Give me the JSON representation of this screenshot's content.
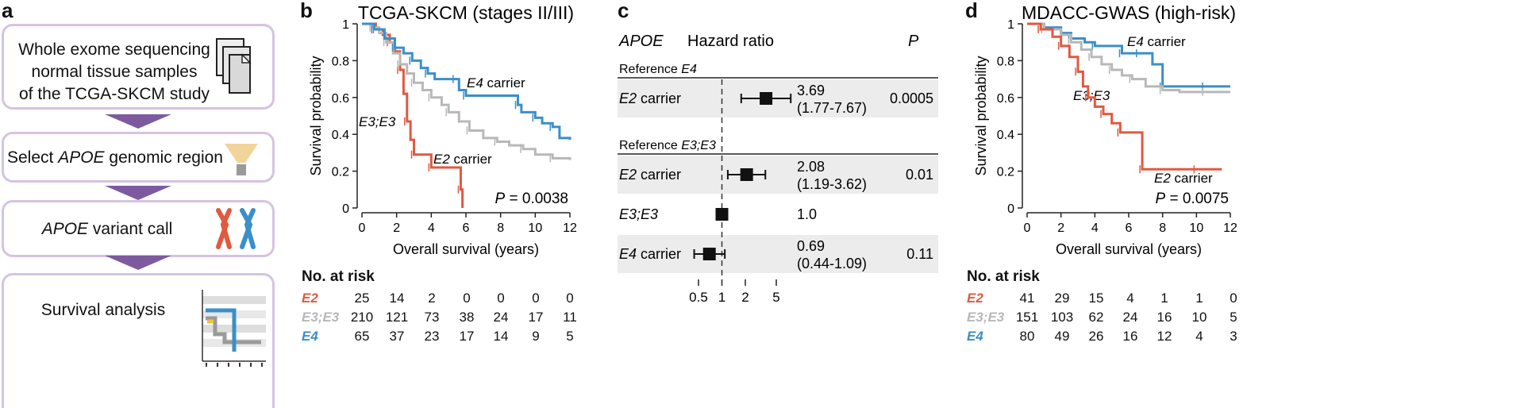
{
  "panel_a": {
    "letter": "a",
    "step1": [
      "Whole exome sequencing",
      "normal tissue samples",
      "of the TCGA-SKCM study"
    ],
    "step2_pre": "Select ",
    "step2_gene": "APOE",
    "step2_post": " genomic region",
    "step3_gene": "APOE",
    "step3_post": " variant call",
    "step4": "Survival analysis",
    "icons": [
      "document-stack-icon",
      "funnel-icon",
      "chromosome-icon",
      "km-plot-icon"
    ]
  },
  "panel_b": {
    "letter": "b",
    "risk": {
      "title": "No. at risk",
      "rows": [
        {
          "label": "E2",
          "color": "#e05a40",
          "values": [
            "25",
            "14",
            "2",
            "0",
            "0",
            "0",
            "0"
          ]
        },
        {
          "label": "E3;E3",
          "color": "#b8b8b8",
          "values": [
            "210",
            "121",
            "73",
            "38",
            "24",
            "17",
            "11"
          ]
        },
        {
          "label": "E4",
          "color": "#3a8fc8",
          "values": [
            "65",
            "37",
            "23",
            "17",
            "14",
            "9",
            "5"
          ]
        }
      ]
    }
  },
  "panel_c": {
    "letter": "c",
    "header_gene": "APOE",
    "header_hr": "Hazard ratio",
    "header_p": "P",
    "ref1_pre": "Reference ",
    "ref1_gene": "E4",
    "ref2_pre": "Reference ",
    "ref2_gene": "E3;E3",
    "rows": [
      {
        "label_gene": "E2",
        "label_post": " carrier",
        "hr": "3.69",
        "ci": "(1.77-7.67)",
        "p": "0.0005"
      },
      {
        "label_gene": "E2",
        "label_post": " carrier",
        "hr": "2.08",
        "ci": "(1.19-3.62)",
        "p": "0.01"
      },
      {
        "label_gene": "E3;E3",
        "label_post": "",
        "hr": "1.0",
        "ci": "",
        "p": ""
      },
      {
        "label_gene": "E4",
        "label_post": " carrier",
        "hr": "0.69",
        "ci": "(0.44-1.09)",
        "p": "0.11"
      }
    ],
    "axis_ticks": [
      "0.5",
      "1",
      "2",
      "5"
    ]
  },
  "panel_d": {
    "letter": "d",
    "risk": {
      "title": "No. at risk",
      "rows": [
        {
          "label": "E2",
          "color": "#e05a40",
          "values": [
            "41",
            "29",
            "15",
            "4",
            "1",
            "1",
            "0"
          ]
        },
        {
          "label": "E3;E3",
          "color": "#b8b8b8",
          "values": [
            "151",
            "103",
            "62",
            "24",
            "16",
            "10",
            "5"
          ]
        },
        {
          "label": "E4",
          "color": "#3a8fc8",
          "values": [
            "80",
            "49",
            "26",
            "16",
            "12",
            "4",
            "3"
          ]
        }
      ]
    }
  },
  "chart_data": [
    {
      "type": "line",
      "title": "TCGA-SKCM (stages II/III)",
      "xlabel": "Overall survival (years)",
      "ylabel": "Survival probability",
      "xlim": [
        0,
        12
      ],
      "ylim": [
        0,
        1
      ],
      "x_ticks": [
        "0",
        "2",
        "4",
        "6",
        "8",
        "10",
        "12"
      ],
      "y_ticks": [
        "0",
        "0.2",
        "0.4",
        "0.6",
        "0.8",
        "1"
      ],
      "annotation_p": "P",
      "annotation_value": " = 0.0038",
      "series": [
        {
          "name": "E2 carrier",
          "label_gene": "E2",
          "label_post": " carrier",
          "color": "#e05a40",
          "x": [
            0,
            0.8,
            1.2,
            1.6,
            1.9,
            2.2,
            2.4,
            2.6,
            2.8,
            3.0,
            3.8,
            4.0,
            5.5,
            5.7,
            5.8
          ],
          "y": [
            1,
            0.97,
            0.94,
            0.9,
            0.85,
            0.75,
            0.62,
            0.47,
            0.37,
            0.29,
            0.29,
            0.22,
            0.22,
            0.1,
            0.0
          ]
        },
        {
          "name": "E3;E3",
          "label_gene": "E3;E3",
          "label_post": "",
          "color": "#b8b8b8",
          "x": [
            0,
            0.6,
            1.0,
            1.4,
            1.8,
            2.2,
            2.6,
            3.0,
            3.5,
            4.0,
            4.6,
            5.0,
            5.6,
            6.2,
            7.0,
            7.8,
            8.5,
            9.3,
            10.0,
            11.0,
            12.0
          ],
          "y": [
            1,
            0.98,
            0.95,
            0.9,
            0.84,
            0.78,
            0.73,
            0.68,
            0.64,
            0.6,
            0.56,
            0.52,
            0.47,
            0.42,
            0.38,
            0.36,
            0.34,
            0.32,
            0.29,
            0.27,
            0.26
          ]
        },
        {
          "name": "E4 carrier",
          "label_gene": "E4",
          "label_post": " carrier",
          "color": "#3a8fc8",
          "x": [
            0,
            0.7,
            1.3,
            1.9,
            2.4,
            2.9,
            3.4,
            3.8,
            4.2,
            5.4,
            5.6,
            6.0,
            8.2,
            9.0,
            9.2,
            10.0,
            10.4,
            11.0,
            11.4,
            12.0
          ],
          "y": [
            1,
            0.97,
            0.92,
            0.87,
            0.84,
            0.8,
            0.76,
            0.73,
            0.7,
            0.7,
            0.64,
            0.61,
            0.61,
            0.56,
            0.52,
            0.49,
            0.46,
            0.44,
            0.38,
            0.37
          ]
        }
      ]
    },
    {
      "type": "line",
      "title": "MDACC-GWAS (high-risk)",
      "xlabel": "Overall survival (years)",
      "ylabel": "Survival probability",
      "xlim": [
        0,
        12
      ],
      "ylim": [
        0,
        1
      ],
      "x_ticks": [
        "0",
        "2",
        "4",
        "6",
        "8",
        "10",
        "12"
      ],
      "y_ticks": [
        "0",
        "0.2",
        "0.4",
        "0.6",
        "0.8",
        "1"
      ],
      "annotation_p": "P",
      "annotation_value": " = 0.0075",
      "series": [
        {
          "name": "E4 carrier",
          "label_gene": "E4",
          "label_post": " carrier",
          "color": "#3a8fc8",
          "x": [
            0,
            1.0,
            2.0,
            2.6,
            3.4,
            4.0,
            5.0,
            5.6,
            6.0,
            6.6,
            7.4,
            8.0,
            9.0,
            10.5,
            12.0
          ],
          "y": [
            1,
            0.98,
            0.95,
            0.92,
            0.9,
            0.88,
            0.88,
            0.84,
            0.84,
            0.84,
            0.78,
            0.66,
            0.66,
            0.66,
            0.66
          ]
        },
        {
          "name": "E3;E3",
          "label_gene": "E3;E3",
          "label_post": "",
          "color": "#b8b8b8",
          "x": [
            0,
            1.0,
            2.0,
            2.6,
            3.2,
            3.8,
            4.4,
            5.0,
            5.6,
            6.2,
            7.0,
            8.0,
            9.0,
            10.5,
            12.0
          ],
          "y": [
            1,
            0.97,
            0.94,
            0.9,
            0.86,
            0.82,
            0.78,
            0.75,
            0.72,
            0.7,
            0.66,
            0.64,
            0.63,
            0.63,
            0.63
          ]
        },
        {
          "name": "E2 carrier",
          "label_gene": "E2",
          "label_post": " carrier",
          "color": "#e05a40",
          "x": [
            0,
            0.8,
            1.5,
            2.0,
            2.5,
            3.0,
            3.3,
            3.6,
            4.0,
            4.5,
            5.0,
            5.5,
            6.0,
            6.8,
            8.0,
            10.0,
            11.5
          ],
          "y": [
            1,
            0.97,
            0.93,
            0.88,
            0.82,
            0.74,
            0.66,
            0.6,
            0.55,
            0.51,
            0.46,
            0.41,
            0.41,
            0.21,
            0.21,
            0.21,
            0.21
          ]
        }
      ]
    },
    {
      "type": "forest",
      "xlabel": "",
      "x_scale": "log",
      "x_ticks": [
        0.5,
        1,
        2,
        5
      ],
      "reference_line": 1,
      "points": [
        {
          "label": "E2 carrier (Reference E4)",
          "hr": 3.69,
          "lo": 1.77,
          "hi": 7.67
        },
        {
          "label": "E2 carrier (Reference E3;E3)",
          "hr": 2.08,
          "lo": 1.19,
          "hi": 3.62
        },
        {
          "label": "E3;E3 (Reference E3;E3)",
          "hr": 1.0,
          "lo": 1.0,
          "hi": 1.0
        },
        {
          "label": "E4 carrier (Reference E3;E3)",
          "hr": 0.69,
          "lo": 0.44,
          "hi": 1.09
        }
      ]
    }
  ]
}
